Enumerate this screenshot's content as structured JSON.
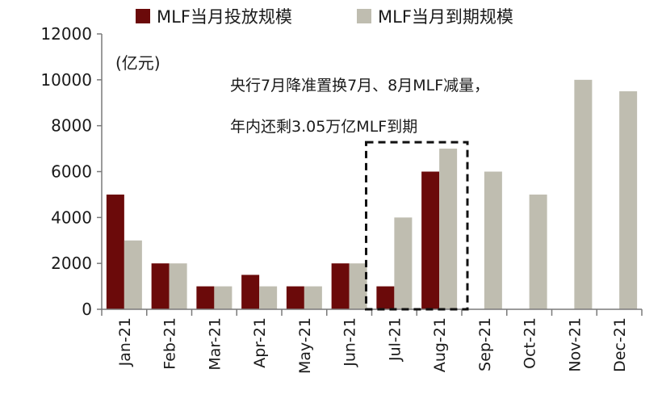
{
  "chart_data": {
    "type": "bar",
    "categories": [
      "Jan-21",
      "Feb-21",
      "Mar-21",
      "Apr-21",
      "May-21",
      "Jun-21",
      "Jul-21",
      "Aug-21",
      "Sep-21",
      "Oct-21",
      "Nov-21",
      "Dec-21"
    ],
    "series": [
      {
        "name": "MLF当月投放规模",
        "color": "#6b0a0a",
        "values": [
          5000,
          2000,
          1000,
          1500,
          1000,
          2000,
          1000,
          6000,
          0,
          0,
          0,
          0
        ]
      },
      {
        "name": "MLF当月到期规模",
        "color": "#bfbdb0",
        "values": [
          3000,
          2000,
          1000,
          1000,
          1000,
          2000,
          4000,
          7000,
          6000,
          5000,
          10000,
          9500
        ]
      }
    ],
    "ylim": [
      0,
      12000
    ],
    "yticks": [
      0,
      2000,
      4000,
      6000,
      8000,
      10000,
      12000
    ],
    "unit_label": "(亿元)",
    "annotation": {
      "line1": "央行7月降准置换7月、8月MLF减量，",
      "line2": "年内还剩3.05万亿MLF到期",
      "highlight_categories": [
        "Jul-21",
        "Aug-21"
      ]
    },
    "legend_position": "top",
    "grid": false
  }
}
